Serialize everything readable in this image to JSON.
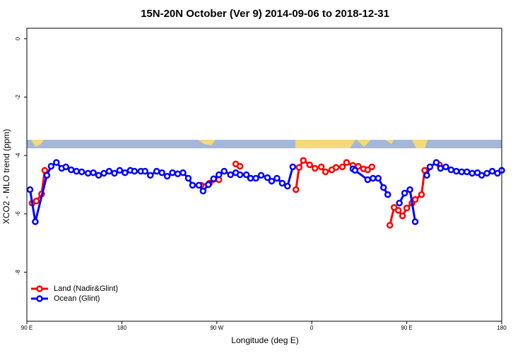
{
  "chart_data": {
    "type": "line",
    "title": "15N-20N October (Ver 9)   2014-09-06 to 2018-12-31",
    "x_label": "Longitude (deg E)",
    "y_label": "XCO2 - MLO trend (ppm)",
    "xlim": [
      90,
      540
    ],
    "ylim": [
      -9.68,
      0.36
    ],
    "xticks": [
      {
        "value": 90,
        "label": "90 E"
      },
      180,
      {
        "value": 270,
        "label": "90 W"
      },
      {
        "value": 360,
        "label": "0"
      },
      {
        "value": 450,
        "label": "90 E"
      },
      {
        "value": 540,
        "label": "180"
      }
    ],
    "yticks": [
      0,
      -2,
      -4,
      -6,
      -8
    ],
    "legend": "bottom-left",
    "series": [
      {
        "name": "Land (Nadir&Glint)",
        "color": "#ff0000",
        "x": [
          95,
          99,
          104,
          107,
          null,
          255,
          263,
          272,
          null,
          288,
          292,
          null,
          345,
          348,
          352,
          358,
          363,
          369,
          373,
          379,
          383,
          389,
          393,
          399,
          404,
          409,
          413,
          417,
          null,
          434,
          438,
          442,
          446,
          450,
          455,
          458,
          464,
          467,
          null,
          481
        ],
        "values": [
          -5.63,
          -5.56,
          -5.32,
          -4.51,
          null,
          -5.02,
          -4.95,
          -4.83,
          null,
          -4.29,
          -4.37,
          null,
          -5.17,
          -4.41,
          -4.17,
          -4.32,
          -4.44,
          -4.39,
          -4.56,
          -4.49,
          -4.41,
          -4.39,
          -4.24,
          -4.34,
          -4.37,
          -4.46,
          -4.49,
          -4.39,
          null,
          -6.39,
          -5.78,
          -5.88,
          -6.07,
          -5.8,
          -5.63,
          -5.51,
          -5.34,
          -4.51,
          null,
          -4.32
        ]
      },
      {
        "name": "Ocean (Glint)",
        "color": "#0000ff",
        "x": [
          93,
          98,
          109,
          113,
          118,
          123,
          127,
          132,
          137,
          142,
          148,
          153,
          158,
          163,
          168,
          173,
          178,
          183,
          188,
          192,
          198,
          202,
          207,
          213,
          218,
          223,
          228,
          233,
          238,
          243,
          247,
          253,
          257,
          262,
          267,
          272,
          277,
          283,
          288,
          292,
          298,
          302,
          307,
          312,
          318,
          322,
          327,
          332,
          337,
          342,
          null,
          399,
          401,
          413,
          418,
          423,
          428,
          432,
          null,
          443,
          448,
          453,
          458,
          null,
          469,
          472,
          478,
          482,
          487,
          492,
          497,
          502,
          507,
          512,
          517,
          521,
          526,
          531,
          536,
          540
        ],
        "values": [
          -5.17,
          -6.27,
          -4.68,
          -4.37,
          -4.24,
          -4.44,
          -4.39,
          -4.49,
          -4.54,
          -4.56,
          -4.61,
          -4.59,
          -4.68,
          -4.61,
          -4.54,
          -4.61,
          -4.51,
          -4.59,
          -4.51,
          -4.54,
          -4.54,
          -4.54,
          -4.68,
          -4.54,
          -4.59,
          -4.71,
          -4.59,
          -4.63,
          -4.59,
          -4.78,
          -5.02,
          -5.02,
          -5.22,
          -5.0,
          -4.8,
          -4.66,
          -4.54,
          -4.66,
          -4.59,
          -4.66,
          -4.66,
          -4.78,
          -4.78,
          -4.68,
          -4.76,
          -4.88,
          -4.78,
          -4.95,
          -5.05,
          -4.39,
          null,
          -4.46,
          -4.51,
          -4.83,
          -4.78,
          -4.78,
          -5.1,
          -5.34,
          null,
          -5.63,
          -5.29,
          -5.17,
          -6.27,
          null,
          -4.68,
          -4.39,
          -4.24,
          -4.44,
          -4.39,
          -4.49,
          -4.54,
          -4.56,
          -4.56,
          -4.61,
          -4.59,
          -4.68,
          -4.61,
          -4.54,
          -4.61,
          -4.51
        ]
      }
    ]
  }
}
